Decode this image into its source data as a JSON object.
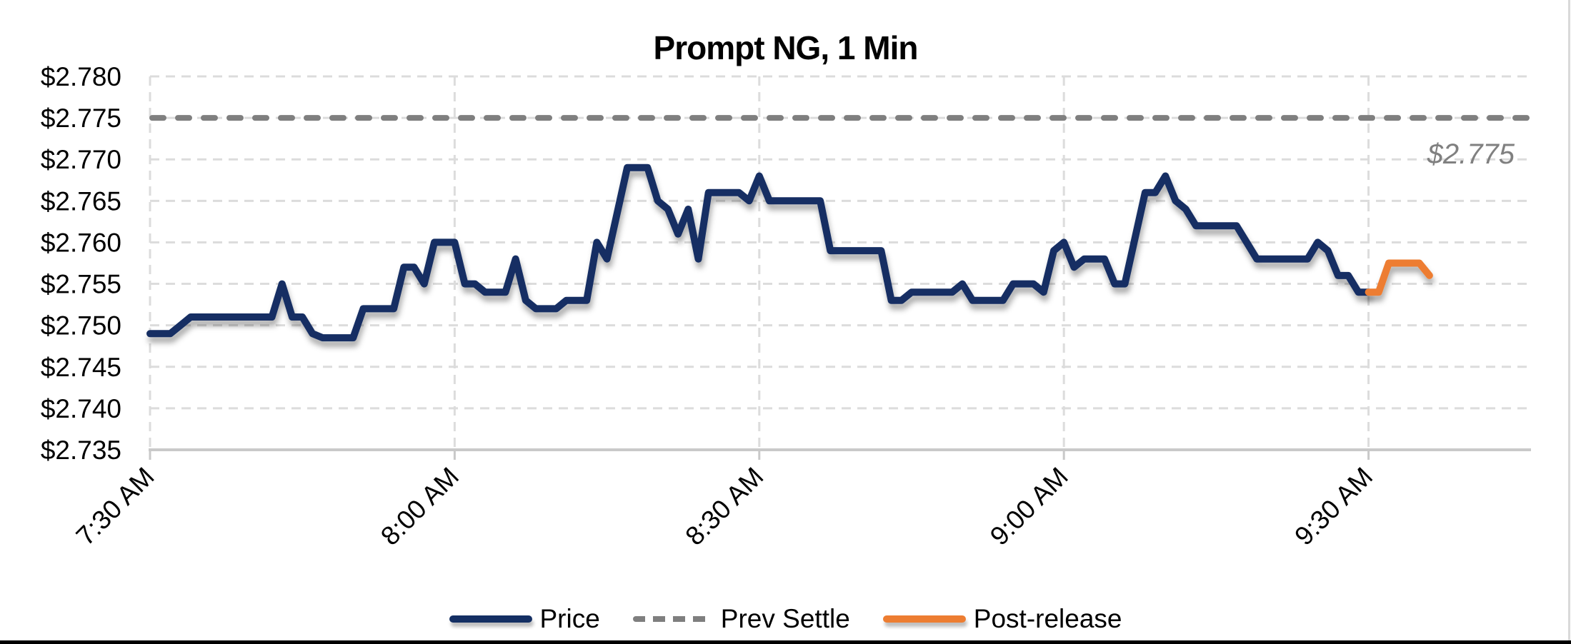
{
  "title": "Prompt NG, 1 Min",
  "annotation": {
    "label": "$2.775",
    "color": "#808080"
  },
  "legend": {
    "items": [
      {
        "label": "Price",
        "color": "#142F63",
        "style": "solid"
      },
      {
        "label": "Prev Settle",
        "color": "#7F7F7F",
        "style": "dashed"
      },
      {
        "label": "Post-release",
        "color": "#ED7D31",
        "style": "solid"
      }
    ]
  },
  "colors": {
    "price_line": "#142F63",
    "post_release_line": "#ED7D31",
    "prev_settle_line": "#7F7F7F",
    "gridline": "#DCDCDC",
    "axis_line": "#C9C9C9",
    "annotation_text": "#808080",
    "chart_border_right": "#D9D9D9",
    "page_border_bottom": "#000000"
  },
  "chart_data": {
    "type": "line",
    "title": "Prompt NG, 1 Min",
    "grid": true,
    "legend_position": "bottom",
    "ylim": [
      2.735,
      2.78
    ],
    "y_tick_step": 0.005,
    "y_tick_labels": [
      "$2.735",
      "$2.740",
      "$2.745",
      "$2.750",
      "$2.755",
      "$2.760",
      "$2.765",
      "$2.770",
      "$2.775",
      "$2.780"
    ],
    "x_axis_minutes": [
      0,
      136
    ],
    "x_ticks": [
      {
        "minute": 0,
        "label": "7:30 AM"
      },
      {
        "minute": 30,
        "label": "8:00 AM"
      },
      {
        "minute": 60,
        "label": "8:30 AM"
      },
      {
        "minute": 90,
        "label": "9:00 AM"
      },
      {
        "minute": 120,
        "label": "9:30 AM"
      }
    ],
    "prev_settle_value": 2.775,
    "series": [
      {
        "name": "Price",
        "start": "7:30 AM",
        "start_minute": 0,
        "interval_minutes": 1,
        "values": [
          2.749,
          2.749,
          2.749,
          2.75,
          2.751,
          2.751,
          2.751,
          2.751,
          2.751,
          2.751,
          2.751,
          2.751,
          2.751,
          2.755,
          2.751,
          2.751,
          2.749,
          2.7485,
          2.7485,
          2.7485,
          2.7485,
          2.752,
          2.752,
          2.752,
          2.752,
          2.757,
          2.757,
          2.755,
          2.76,
          2.76,
          2.76,
          2.755,
          2.755,
          2.754,
          2.754,
          2.754,
          2.758,
          2.753,
          2.752,
          2.752,
          2.752,
          2.753,
          2.753,
          2.753,
          2.76,
          2.758,
          2.7635,
          2.769,
          2.769,
          2.769,
          2.765,
          2.764,
          2.761,
          2.764,
          2.758,
          2.766,
          2.766,
          2.766,
          2.766,
          2.765,
          2.768,
          2.765,
          2.765,
          2.765,
          2.765,
          2.765,
          2.765,
          2.759,
          2.759,
          2.759,
          2.759,
          2.759,
          2.759,
          2.753,
          2.753,
          2.754,
          2.754,
          2.754,
          2.754,
          2.754,
          2.755,
          2.753,
          2.753,
          2.753,
          2.753,
          2.755,
          2.755,
          2.755,
          2.754,
          2.759,
          2.76,
          2.757,
          2.758,
          2.758,
          2.758,
          2.755,
          2.755,
          2.7605,
          2.766,
          2.766,
          2.768,
          2.765,
          2.764,
          2.762,
          2.762,
          2.762,
          2.762,
          2.762,
          2.76,
          2.758,
          2.758,
          2.758,
          2.758,
          2.758,
          2.758,
          2.76,
          2.759,
          2.756,
          2.756,
          2.754,
          2.754
        ]
      },
      {
        "name": "Post-release",
        "start": "9:30 AM",
        "start_minute": 120,
        "interval_minutes": 1,
        "values": [
          2.754,
          2.754,
          2.7575,
          2.7575,
          2.7575,
          2.7575,
          2.756
        ]
      }
    ]
  }
}
